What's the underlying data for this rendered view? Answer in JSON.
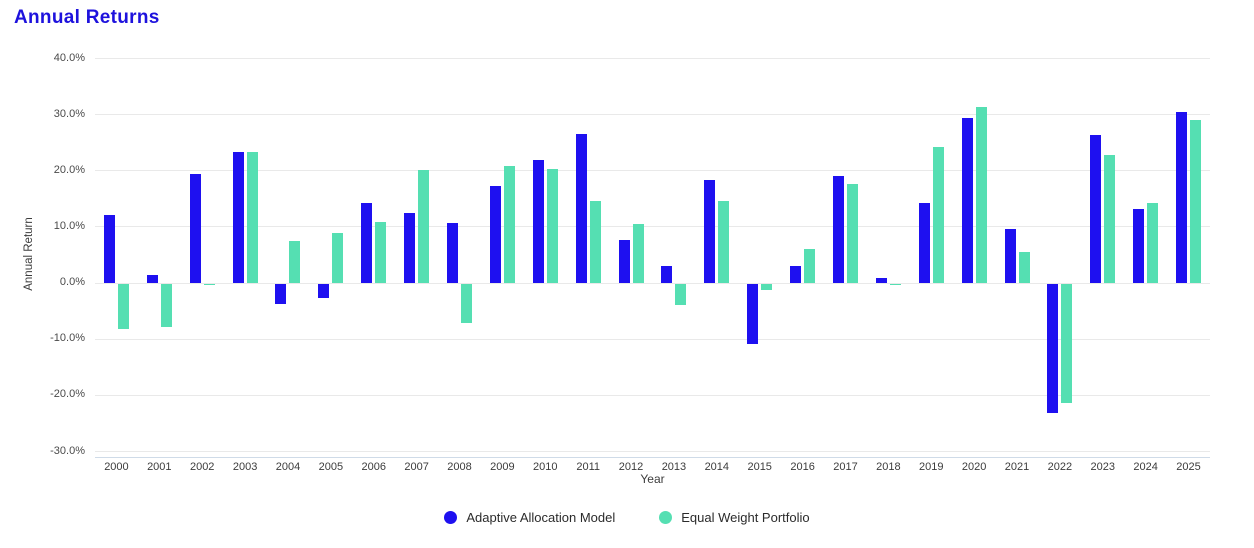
{
  "title": "Annual Returns",
  "colors": {
    "title": "#1e12dd",
    "series1": "#1e10f0",
    "series2": "#55dfb2",
    "gridline": "#e9e9e9",
    "axis_line": "#cfdbe8"
  },
  "axes": {
    "y_ticks": [
      "40.0%",
      "30.0%",
      "20.0%",
      "10.0%",
      "0.0%",
      "-10.0%",
      "-20.0%",
      "-30.0%"
    ],
    "y_tick_values": [
      40,
      30,
      20,
      10,
      0,
      -10,
      -20,
      -30
    ]
  },
  "chart_data": {
    "type": "bar",
    "title": "Annual Returns",
    "xlabel": "Year",
    "ylabel": "Annual Return",
    "ylim": [
      -30,
      40
    ],
    "grid": true,
    "legend_position": "bottom",
    "categories": [
      "2000",
      "2001",
      "2002",
      "2003",
      "2004",
      "2005",
      "2006",
      "2007",
      "2008",
      "2009",
      "2010",
      "2011",
      "2012",
      "2013",
      "2014",
      "2015",
      "2016",
      "2017",
      "2018",
      "2019",
      "2020",
      "2021",
      "2022",
      "2023",
      "2024",
      "2025"
    ],
    "series": [
      {
        "name": "Adaptive Allocation Model",
        "color": "#1e10f0",
        "values": [
          12.0,
          1.3,
          19.3,
          23.2,
          -3.6,
          -2.5,
          14.1,
          12.4,
          10.6,
          17.2,
          21.8,
          26.5,
          7.6,
          2.9,
          18.3,
          -10.7,
          2.9,
          19.0,
          0.8,
          14.2,
          29.4,
          9.5,
          -23.1,
          26.2,
          13.1,
          30.3
        ]
      },
      {
        "name": "Equal Weight Portfolio",
        "color": "#55dfb2",
        "values": [
          -8.1,
          -7.7,
          -0.3,
          23.2,
          7.4,
          8.9,
          10.7,
          20.1,
          -7.1,
          20.8,
          20.3,
          14.6,
          10.5,
          -3.8,
          14.5,
          -1.1,
          6.0,
          17.6,
          -0.2,
          24.1,
          31.2,
          5.5,
          -21.2,
          22.8,
          14.2,
          28.9
        ]
      }
    ]
  }
}
